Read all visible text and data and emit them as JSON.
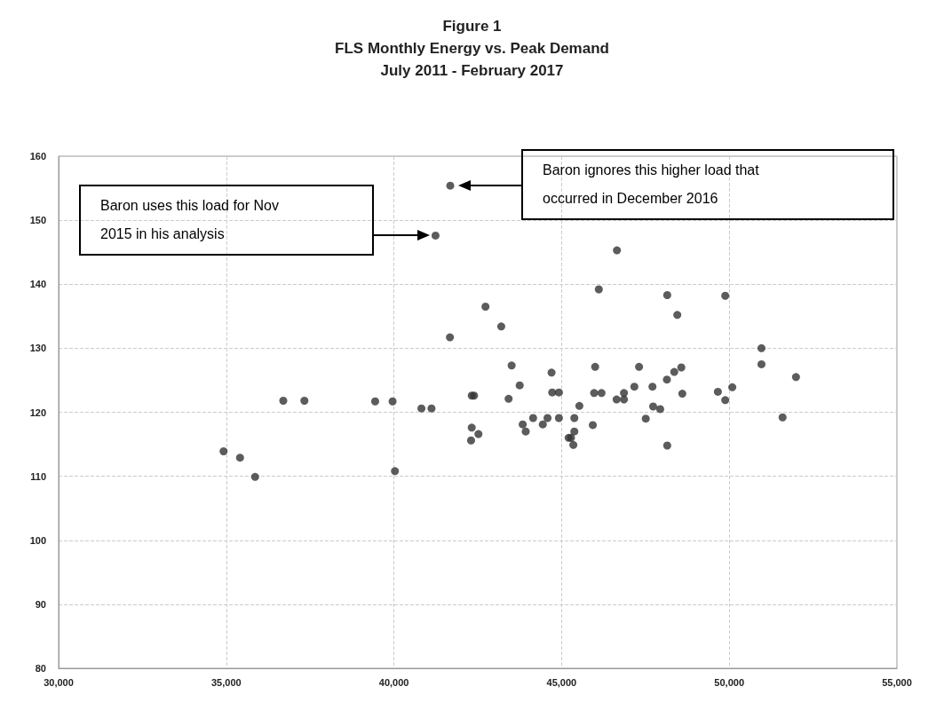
{
  "chart_data": {
    "type": "scatter",
    "title": "Figure 1",
    "subtitle": "FLS Monthly Energy vs. Peak Demand\nJuly 2011 - February 2017",
    "series": [
      {
        "color": "#333333",
        "x": [
          41680,
          41240,
          41670,
          36700,
          37330,
          39440,
          39960,
          40820,
          41120,
          34920,
          35410,
          35860,
          40030,
          42320,
          42390,
          42320,
          42300,
          42520,
          46650,
          46110,
          48150,
          49880,
          48450,
          42730,
          43200,
          50960,
          50960,
          51990,
          43510,
          43750,
          44700,
          44720,
          44920,
          46000,
          45970,
          46190,
          47310,
          47170,
          47710,
          48140,
          48360,
          48570,
          48600,
          46640,
          46860,
          46860,
          47730,
          47940,
          45530,
          49660,
          49880,
          50090,
          43420,
          43840,
          43930,
          44150,
          44440,
          44580,
          44920,
          45380,
          45380,
          45210,
          45280,
          45350,
          45930,
          47510,
          48150,
          51590
        ],
        "values": [
          155.4,
          147.6,
          131.7,
          121.8,
          121.8,
          121.7,
          121.7,
          120.6,
          120.6,
          113.9,
          112.9,
          109.9,
          110.8,
          122.6,
          122.6,
          117.6,
          115.6,
          116.6,
          145.3,
          139.2,
          138.3,
          138.2,
          135.2,
          136.5,
          133.4,
          130.0,
          127.5,
          125.5,
          127.3,
          124.2,
          126.2,
          123.1,
          123.1,
          127.1,
          123.0,
          123.0,
          127.1,
          124.0,
          124.0,
          125.1,
          126.3,
          127.0,
          122.9,
          122.0,
          122.0,
          123.0,
          120.9,
          120.5,
          121.0,
          123.2,
          121.9,
          123.9,
          122.1,
          118.1,
          117.0,
          119.1,
          118.1,
          119.1,
          119.1,
          119.1,
          117.0,
          116.0,
          116.0,
          114.9,
          118.0,
          119.0,
          114.8,
          119.2
        ]
      }
    ],
    "xlim": [
      30000,
      55000
    ],
    "xticks": [
      {
        "value": 30000,
        "label": "30,000"
      },
      {
        "value": 35000,
        "label": "35,000"
      },
      {
        "value": 40000,
        "label": "40,000"
      },
      {
        "value": 45000,
        "label": "45,000"
      },
      {
        "value": 50000,
        "label": "50,000"
      },
      {
        "value": 55000,
        "label": "55,000"
      }
    ],
    "ylim": [
      80,
      160
    ],
    "yticks": [
      80,
      90,
      100,
      110,
      120,
      130,
      140,
      150,
      160
    ],
    "grid": true,
    "marker": "circle",
    "annotations": [
      "Baron uses this load for Nov\n2015 in his analysis",
      "Baron ignores this higher load that\noccurred in December 2016"
    ]
  }
}
